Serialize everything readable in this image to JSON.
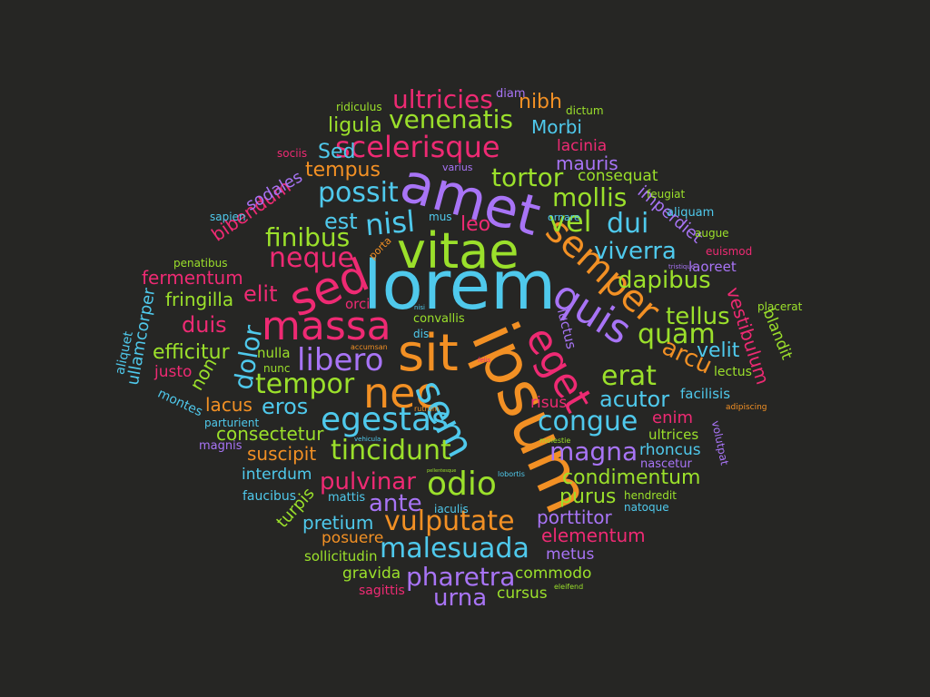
{
  "background": "#262624",
  "palette": {
    "purple": "#a874f6",
    "green": "#9be02b",
    "cyan": "#4fc9ec",
    "orange": "#f29024",
    "pink": "#ee2a73"
  },
  "words": [
    "lorem",
    "ipsum",
    "amet",
    "vitae",
    "sit",
    "sed",
    "massa",
    "nec",
    "eget",
    "quis",
    "semper",
    "sem",
    "libero",
    "egestas",
    "tempor",
    "scelerisque",
    "nisl",
    "neque",
    "finibus",
    "tortor",
    "congue",
    "tincidunt",
    "odio",
    "vulputate",
    "malesuada",
    "ultricies",
    "venenatis",
    "possit",
    "mollis",
    "vel",
    "dui",
    "viverra",
    "dapibus",
    "tellus",
    "quam",
    "erat",
    "acutor",
    "arcu",
    "velit",
    "magna",
    "pulvinar",
    "ante",
    "pharetra",
    "urna",
    "pretium",
    "elementum",
    "porttitor",
    "condimentum",
    "purus",
    "fermentum",
    "fringilla",
    "duis",
    "efficitur",
    "eros",
    "consectetur",
    "suscipit",
    "interdum",
    "dolor",
    "non",
    "lacus",
    "elit",
    "est",
    "leo",
    "tempus",
    "Sed",
    "ligula",
    "Morbi",
    "mauris",
    "lacinia",
    "nibh",
    "consequat",
    "bibendum",
    "sodales",
    "imperdiet",
    "vestibulum",
    "blandit",
    "ullamcorper",
    "aliquet",
    "justo",
    "montes",
    "parturient",
    "magnis",
    "faucibus",
    "mattis",
    "turpis",
    "posuere",
    "sollicitudin",
    "gravida",
    "sagittis",
    "commodo",
    "cursus",
    "metus",
    "hendredit",
    "natoque",
    "nascetur",
    "ultrices",
    "rhoncus",
    "enim",
    "facilisis",
    "lectus",
    "laoreet",
    "euismod",
    "tristique",
    "augue",
    "aliquam",
    "feugiat",
    "volutpat",
    "adipiscing",
    "placerat",
    "risus",
    "luctus",
    "nulla",
    "nunc",
    "accumsan",
    "orci",
    "convallis",
    "dis",
    "nisi",
    "porta",
    "mus",
    "ornare",
    "varius",
    "dictum",
    "diam",
    "ridiculus",
    "sociis",
    "sapien",
    "penatibus",
    "rutrum",
    "vehicula",
    "molestie",
    "lobortis",
    "iaculis",
    "eleifend",
    "pellentesque",
    "felis"
  ]
}
